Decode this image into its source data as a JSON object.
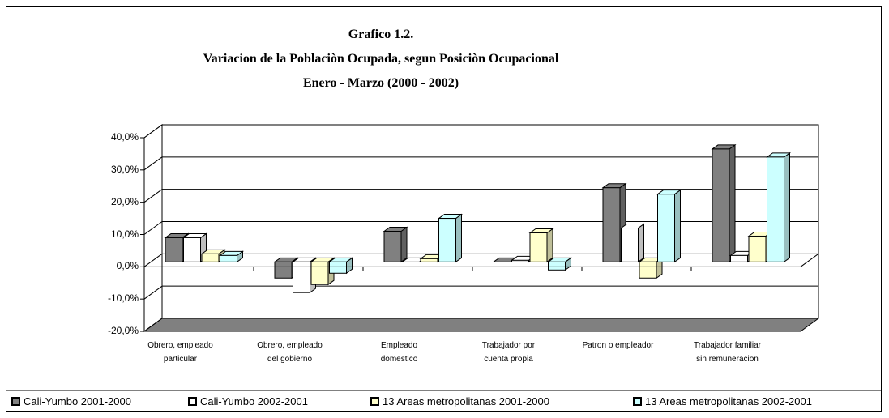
{
  "chart_data": {
    "type": "bar3d",
    "title": "Grafico 1.2.\nVariacion de la  Poblaciòn Ocupada, segun Posiciòn Ocupacional\nEnero -  Marzo (2000 - 2002)",
    "categories": [
      "Obrero,  empleado\nparticular",
      "Obrero,  empleado\ndel gobierno",
      "Empleado\ndomestico",
      "Trabajador  por\ncuenta  propia",
      "Patron o  empleador",
      "Trabajador familiar\nsin remuneracion"
    ],
    "series": [
      {
        "name": "Cali-Yumbo 2001-2000",
        "color": "#808080",
        "values": [
          7.5,
          -5,
          9.5,
          0,
          23,
          35
        ]
      },
      {
        "name": "Cali-Yumbo 2002-2001",
        "color": "#ffffff",
        "values": [
          7.5,
          -9.5,
          0,
          0.5,
          10.5,
          2
        ]
      },
      {
        "name": "13 Areas  metropolitanas 2001-2000",
        "color": "#ffffcc",
        "values": [
          2.5,
          -7,
          1,
          9,
          -5,
          8
        ]
      },
      {
        "name": "13 Areas  metropolitanas 2002-2001",
        "color": "#ccffff",
        "values": [
          2,
          -3.5,
          13.5,
          -2.5,
          21,
          32.5
        ]
      }
    ],
    "ylim": [
      -20,
      40
    ],
    "yticks": [
      {
        "value": -20,
        "label": "-20,0%"
      },
      {
        "value": -10,
        "label": "-10,0%"
      },
      {
        "value": 0,
        "label": "0,0%"
      },
      {
        "value": 10,
        "label": "10,0%"
      },
      {
        "value": 20,
        "label": "20,0%"
      },
      {
        "value": 30,
        "label": "30,0%"
      },
      {
        "value": 40,
        "label": "40,0%"
      }
    ],
    "grid": true,
    "legend": "bottom"
  }
}
